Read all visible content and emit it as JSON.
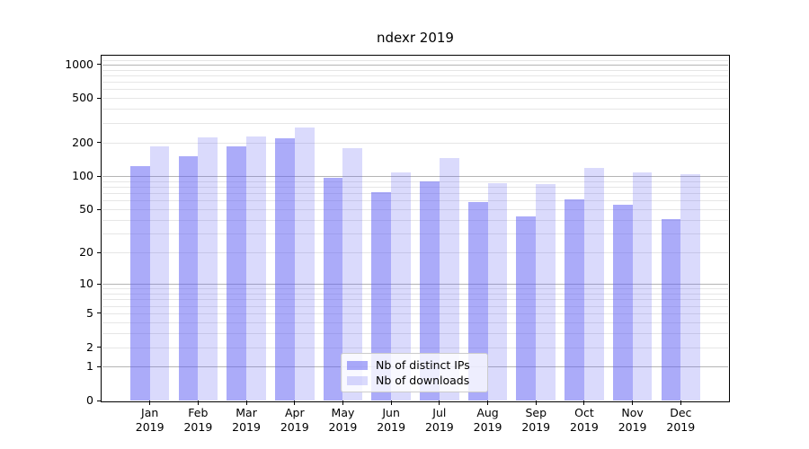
{
  "chart_data": {
    "type": "bar",
    "title": "ndexr 2019",
    "categories": [
      "Jan 2019",
      "Feb 2019",
      "Mar 2019",
      "Apr 2019",
      "May 2019",
      "Jun 2019",
      "Jul 2019",
      "Aug 2019",
      "Sep 2019",
      "Oct 2019",
      "Nov 2019",
      "Dec 2019"
    ],
    "series": [
      {
        "key": "distinct-ips",
        "name": "Nb of distinct IPs",
        "color_hex": "#aaaaf7",
        "fill": "rgba(94,94,244,0.52)",
        "values": [
          122,
          151,
          184,
          219,
          96,
          71,
          89,
          58,
          43,
          61,
          55,
          41
        ]
      },
      {
        "key": "downloads",
        "name": "Nb of downloads",
        "color_hex": "#dadaf9",
        "fill": "rgba(94,94,244,0.23)",
        "values": [
          186,
          224,
          227,
          271,
          179,
          107,
          144,
          87,
          84,
          119,
          108,
          103
        ]
      }
    ],
    "yscale": "symlog",
    "yticks": [
      0,
      1,
      2,
      5,
      10,
      20,
      50,
      100,
      200,
      500,
      1000
    ],
    "ylim": [
      0,
      1200
    ],
    "grid": true,
    "legend": {
      "position": "bottom-center",
      "labels": [
        "Nb of distinct IPs",
        "Nb of downloads"
      ]
    },
    "colors": {
      "grid_major": "#b4b4b4",
      "grid_minor": "#e6e6e6",
      "axis": "#000000",
      "background": "#ffffff"
    }
  }
}
